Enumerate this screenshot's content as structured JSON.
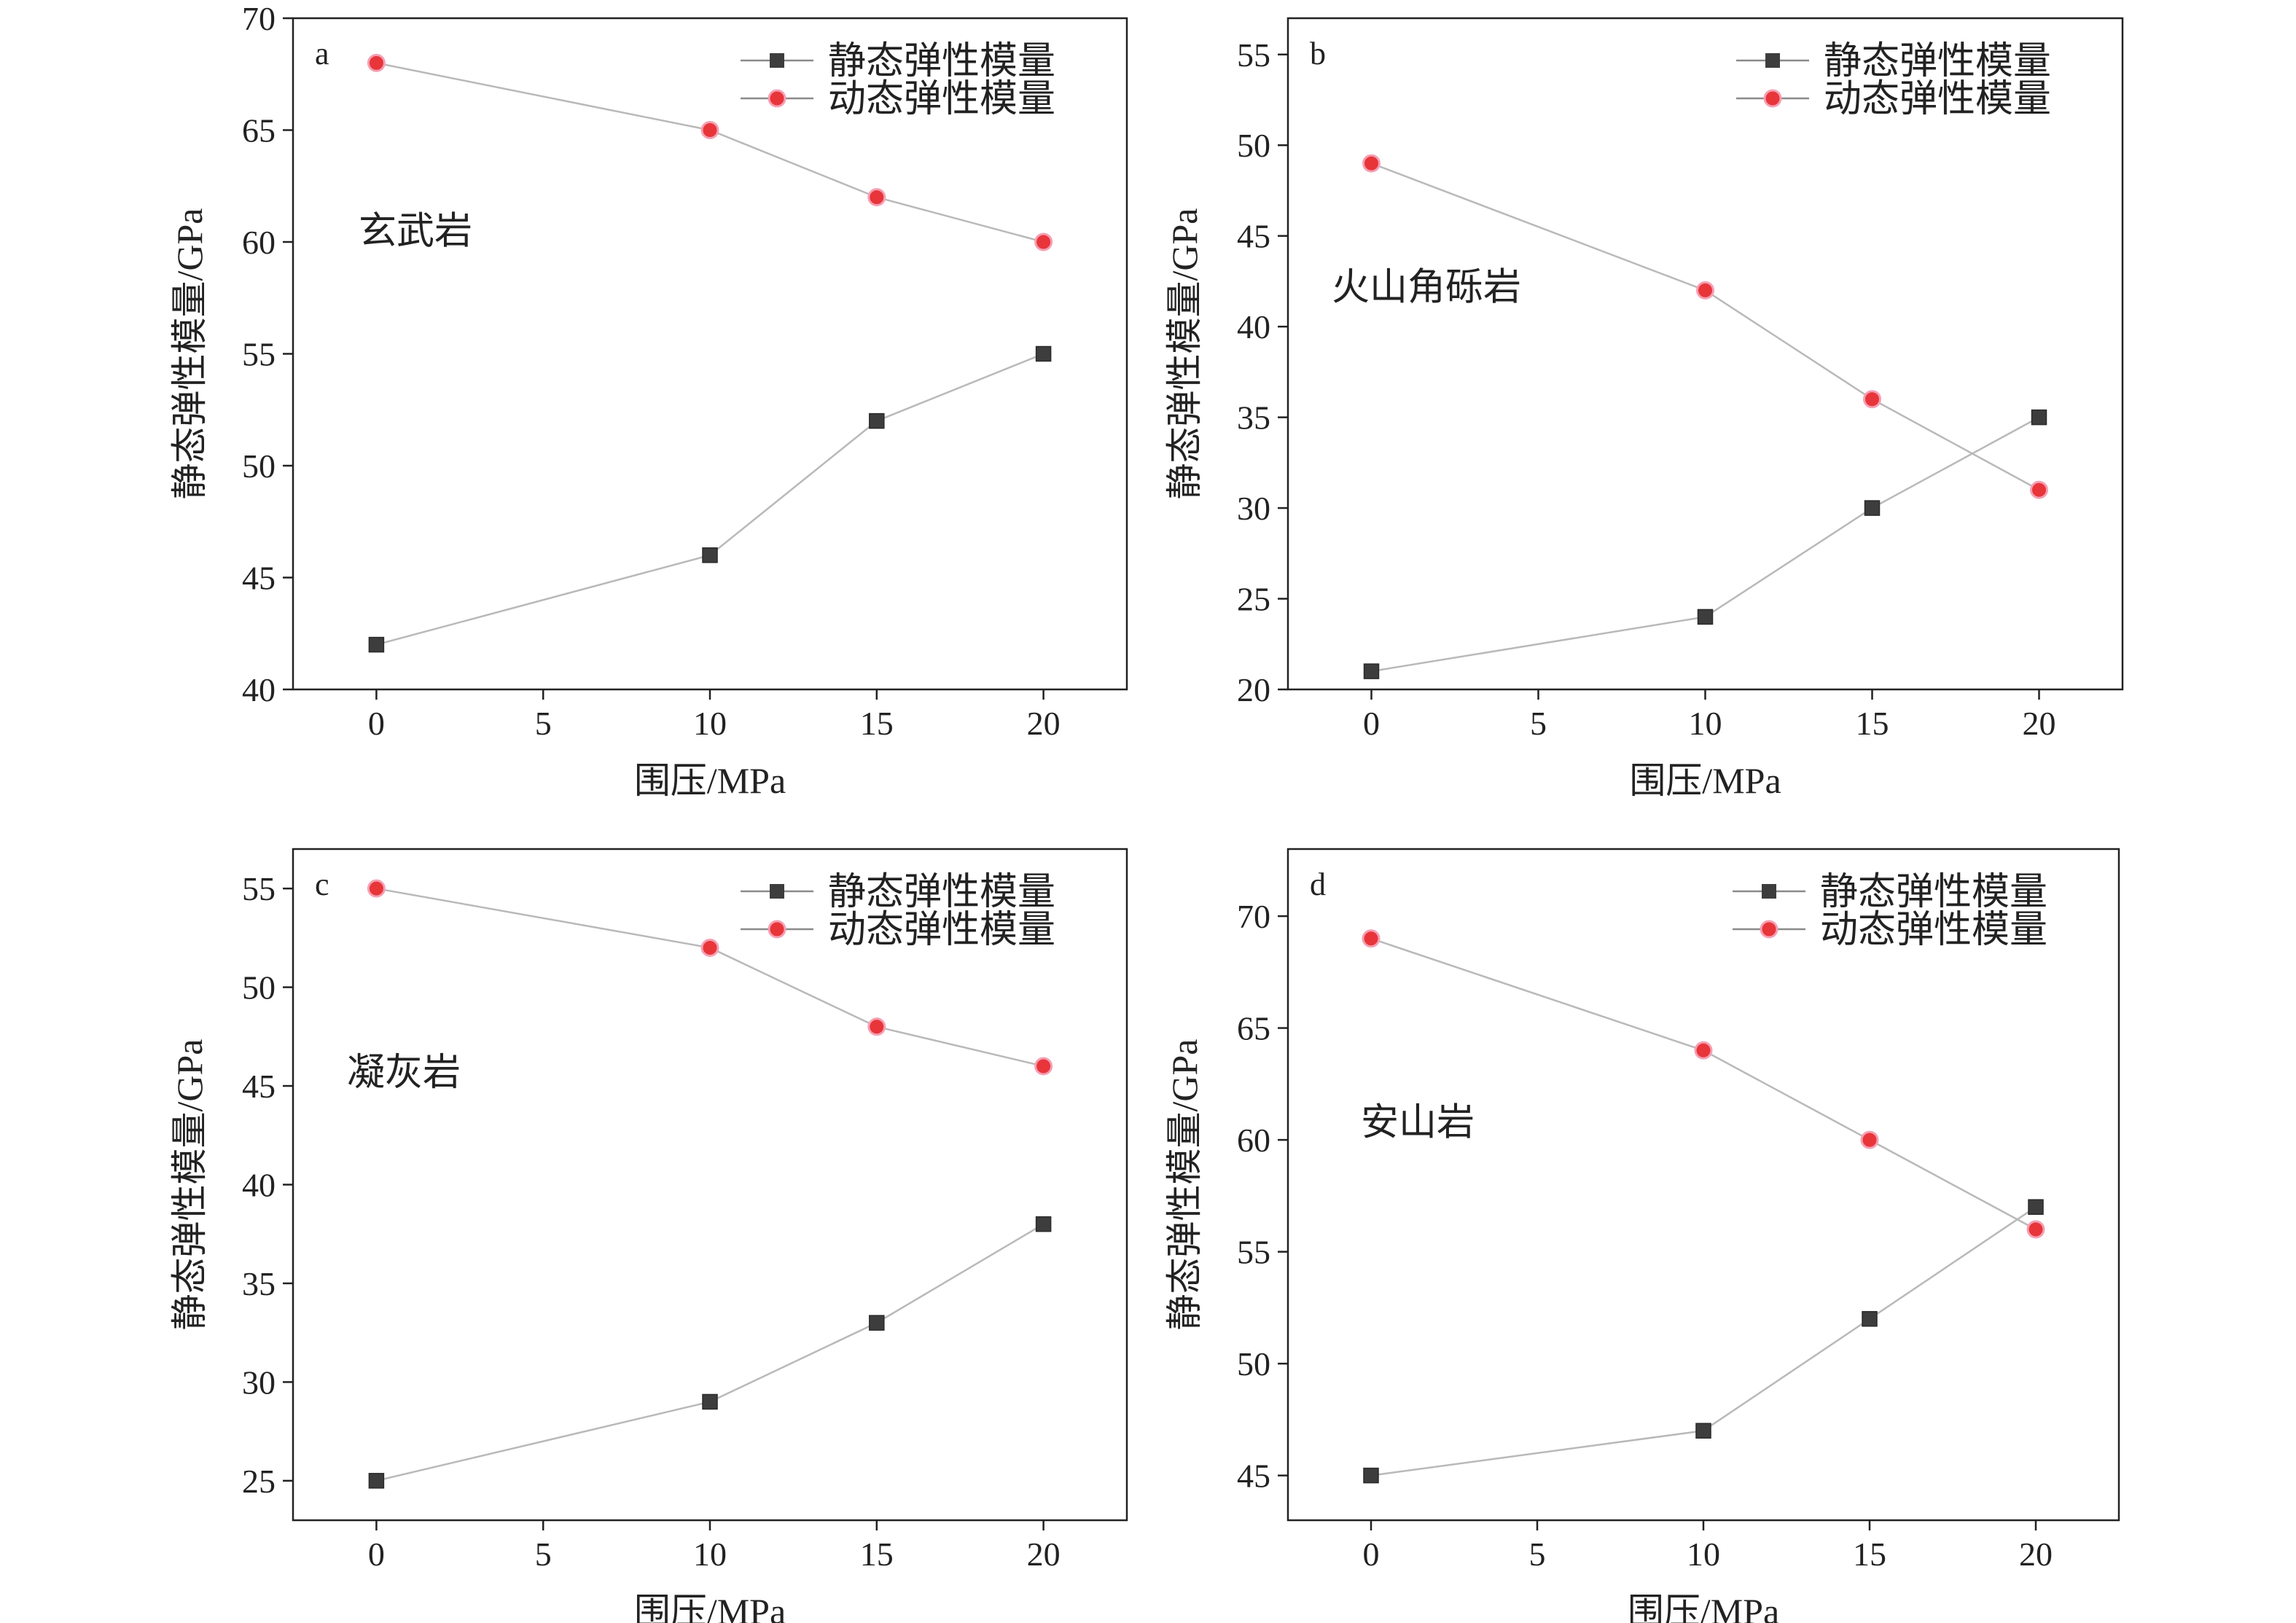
{
  "chart_data": [
    {
      "type": "line",
      "panel_label": "a",
      "annotation": "玄武岩",
      "xlabel": "围压/MPa",
      "ylabel": "静态弹性模量/GPa",
      "xlim": [
        -2.5,
        22.5
      ],
      "ylim": [
        40,
        70
      ],
      "xticks": [
        0,
        5,
        10,
        15,
        20
      ],
      "yticks": [
        40,
        45,
        50,
        55,
        60,
        65,
        70
      ],
      "legend_position": "top-right",
      "series": [
        {
          "name": "静态弹性模量",
          "marker": "square",
          "color": "#3d3d3d",
          "x": [
            0,
            10,
            15,
            20
          ],
          "y": [
            42,
            46,
            52,
            55
          ]
        },
        {
          "name": "动态弹性模量",
          "marker": "circle",
          "color": "#e8353a",
          "x": [
            0,
            10,
            15,
            20
          ],
          "y": [
            68,
            65,
            62,
            60
          ]
        }
      ]
    },
    {
      "type": "line",
      "panel_label": "b",
      "annotation": "火山角砾岩",
      "xlabel": "围压/MPa",
      "ylabel": "静态弹性模量/GPa",
      "xlim": [
        -2.5,
        22.5
      ],
      "ylim": [
        20,
        57
      ],
      "xticks": [
        0,
        5,
        10,
        15,
        20
      ],
      "yticks": [
        20,
        25,
        30,
        35,
        40,
        45,
        50,
        55
      ],
      "legend_position": "top-right",
      "series": [
        {
          "name": "静态弹性模量",
          "marker": "square",
          "color": "#3d3d3d",
          "x": [
            0,
            10,
            15,
            20
          ],
          "y": [
            21,
            24,
            30,
            35
          ]
        },
        {
          "name": "动态弹性模量",
          "marker": "circle",
          "color": "#e8353a",
          "x": [
            0,
            10,
            15,
            20
          ],
          "y": [
            49,
            42,
            36,
            31
          ]
        }
      ]
    },
    {
      "type": "line",
      "panel_label": "c",
      "annotation": "凝灰岩",
      "xlabel": "围压/MPa",
      "ylabel": "静态弹性模量/GPa",
      "xlim": [
        -2.5,
        22.5
      ],
      "ylim": [
        23,
        57
      ],
      "xticks": [
        0,
        5,
        10,
        15,
        20
      ],
      "yticks": [
        25,
        30,
        35,
        40,
        45,
        50,
        55
      ],
      "legend_position": "top-right",
      "series": [
        {
          "name": "静态弹性模量",
          "marker": "square",
          "color": "#3d3d3d",
          "x": [
            0,
            10,
            15,
            20
          ],
          "y": [
            25,
            29,
            33,
            38
          ]
        },
        {
          "name": "动态弹性模量",
          "marker": "circle",
          "color": "#e8353a",
          "x": [
            0,
            10,
            15,
            20
          ],
          "y": [
            55,
            52,
            48,
            46
          ]
        }
      ]
    },
    {
      "type": "line",
      "panel_label": "d",
      "annotation": "安山岩",
      "xlabel": "围压/MPa",
      "ylabel": "静态弹性模量/GPa",
      "xlim": [
        -2.5,
        22.5
      ],
      "ylim": [
        43,
        73
      ],
      "xticks": [
        0,
        5,
        10,
        15,
        20
      ],
      "yticks": [
        45,
        50,
        55,
        60,
        65,
        70
      ],
      "legend_position": "top-right",
      "series": [
        {
          "name": "静态弹性模量",
          "marker": "square",
          "color": "#3d3d3d",
          "x": [
            0,
            10,
            15,
            20
          ],
          "y": [
            45,
            47,
            52,
            57
          ]
        },
        {
          "name": "动态弹性模量",
          "marker": "circle",
          "color": "#e8353a",
          "x": [
            0,
            10,
            15,
            20
          ],
          "y": [
            69,
            64,
            60,
            56
          ]
        }
      ]
    }
  ]
}
